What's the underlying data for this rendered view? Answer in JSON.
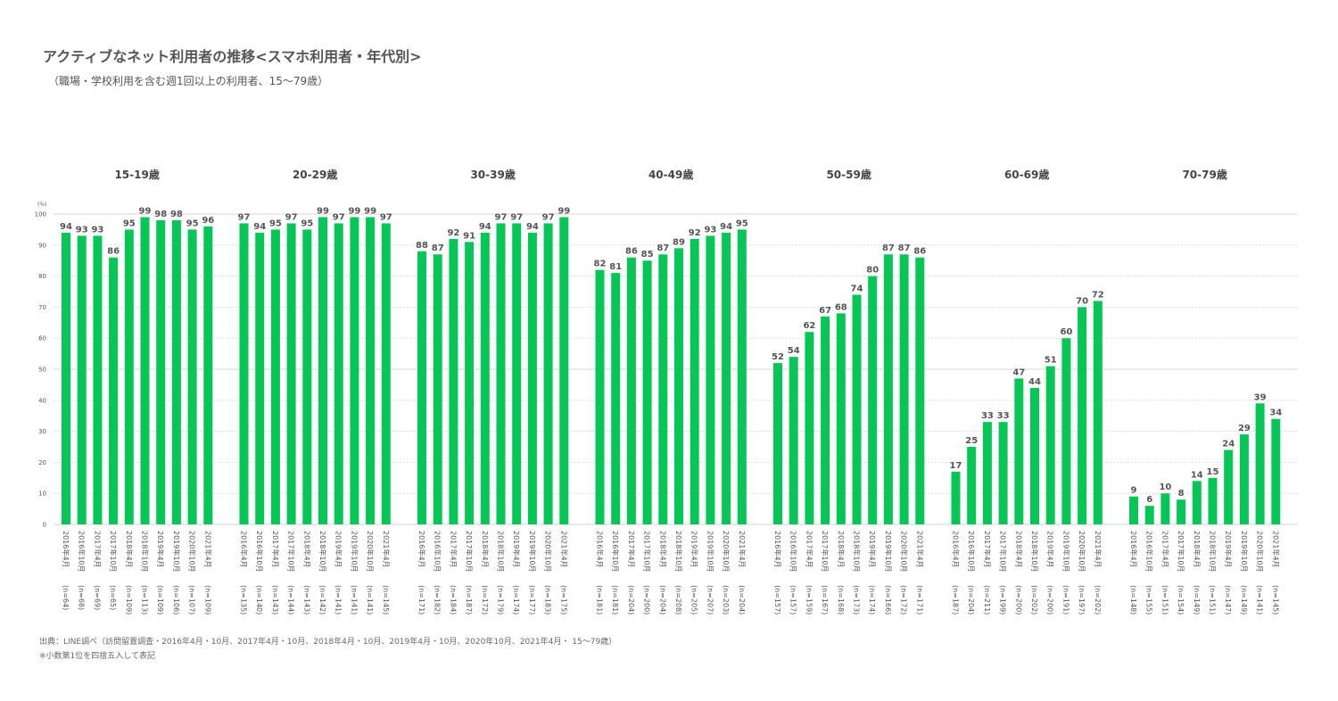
{
  "title": "アクティブなネット利用者の推移<スマホ利用者・年代別>",
  "subtitle": "（職場・学校利用を含む週1回以上の利用者、15〜79歳）",
  "source": "出典：LINE調べ（訪問留置調査・2016年4月・10月、2017年4月・10月、2018年4月・10月、2019年4月・10月、2020年10月、2021年4月・ 15〜79歳）",
  "note": "※小数第1位を四捨五入して表記",
  "colors": {
    "bar": "#06c755",
    "grid": "#c8c8c8",
    "label": "#555555"
  },
  "chart_data": {
    "type": "bar",
    "unit": "(%)",
    "ylim": [
      0,
      100
    ],
    "yticks": [
      0,
      10,
      20,
      30,
      40,
      50,
      60,
      70,
      80,
      90,
      100
    ],
    "grid": true,
    "categories": [
      "2016年4月",
      "2016年10月",
      "2017年4月",
      "2017年10月",
      "2018年4月",
      "2018年10月",
      "2019年4月",
      "2019年10月",
      "2020年10月",
      "2021年4月"
    ],
    "groups": [
      {
        "name": "15-19歳",
        "values": [
          94,
          93,
          93,
          86,
          95,
          99,
          98,
          98,
          95,
          96
        ],
        "n": [
          "(n=64)",
          "(n=68)",
          "(n=69)",
          "(n=65)",
          "(n=109)",
          "(n=113)",
          "(n=109)",
          "(n=106)",
          "(n=107)",
          "(n=109)"
        ]
      },
      {
        "name": "20-29歳",
        "values": [
          97,
          94,
          95,
          97,
          95,
          99,
          97,
          99,
          99,
          97
        ],
        "n": [
          "(n=135)",
          "(n=140)",
          "(n=143)",
          "(n=144)",
          "(n=143)",
          "(n=142)",
          "(n=141)",
          "(n=141)",
          "(n=141)",
          "(n=145)"
        ]
      },
      {
        "name": "30-39歳",
        "values": [
          88,
          87,
          92,
          91,
          94,
          97,
          97,
          94,
          97,
          99
        ],
        "n": [
          "(n=171)",
          "(n=182)",
          "(n=184)",
          "(n=187)",
          "(n=172)",
          "(n=179)",
          "(n=174)",
          "(n=177)",
          "(n=183)",
          "(n=175)"
        ]
      },
      {
        "name": "40-49歳",
        "values": [
          82,
          81,
          86,
          85,
          87,
          89,
          92,
          93,
          94,
          95
        ],
        "n": [
          "(n=181)",
          "(n=181)",
          "(n=204)",
          "(n=200)",
          "(n=204)",
          "(n=208)",
          "(n=205)",
          "(n=207)",
          "(n=203)",
          "(n=204)"
        ]
      },
      {
        "name": "50-59歳",
        "values": [
          52,
          54,
          62,
          67,
          68,
          74,
          80,
          87,
          87,
          86
        ],
        "n": [
          "(n=157)",
          "(n=157)",
          "(n=159)",
          "(n=167)",
          "(n=168)",
          "(n=173)",
          "(n=174)",
          "(n=166)",
          "(n=172)",
          "(n=171)"
        ]
      },
      {
        "name": "60-69歳",
        "values": [
          17,
          25,
          33,
          33,
          47,
          44,
          51,
          60,
          70,
          72
        ],
        "n": [
          "(n=187)",
          "(n=204)",
          "(n=211)",
          "(n=199)",
          "(n=200)",
          "(n=202)",
          "(n=200)",
          "(n=191)",
          "(n=197)",
          "(n=202)"
        ]
      },
      {
        "name": "70-79歳",
        "values": [
          9,
          6,
          10,
          8,
          14,
          15,
          24,
          29,
          39,
          34
        ],
        "n": [
          "(n=148)",
          "(n=155)",
          "(n=151)",
          "(n=154)",
          "(n=149)",
          "(n=151)",
          "(n=147)",
          "(n=149)",
          "(n=141)",
          "(n=145)"
        ]
      }
    ]
  }
}
